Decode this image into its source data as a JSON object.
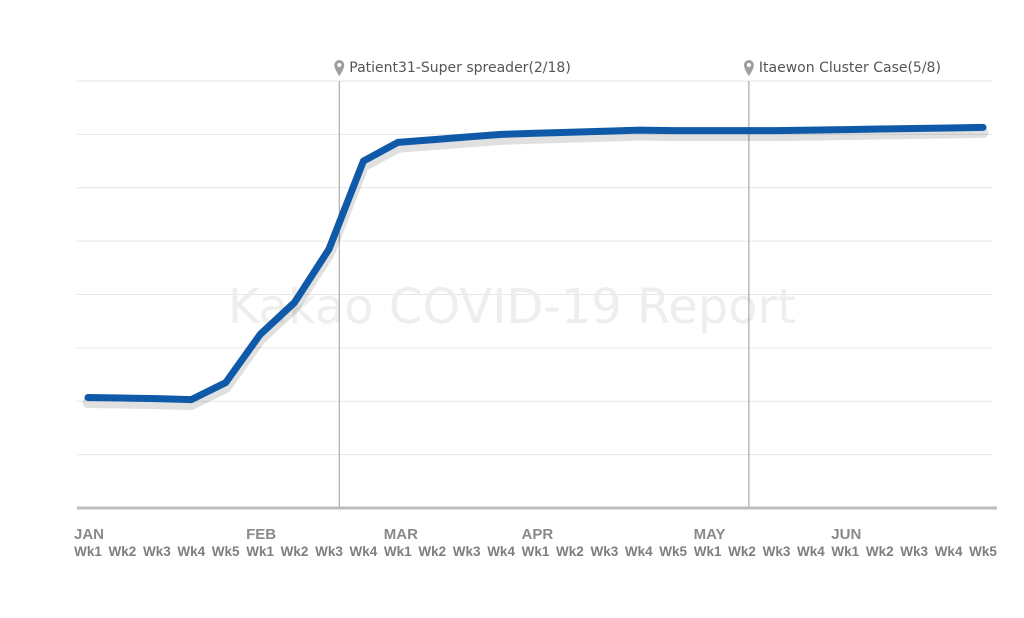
{
  "watermark": "Kakao COVID-19 Report",
  "colors": {
    "line": "#0f5aa8",
    "grid": "#e6e6e6",
    "axis": "#bdbdbd",
    "event": "#9a9a9a"
  },
  "chart_data": {
    "type": "line",
    "title": "",
    "xlabel": "",
    "ylabel": "",
    "grid": true,
    "y_tick_labels_shown": false,
    "ylim": [
      0,
      8
    ],
    "months": [
      {
        "label": "JAN",
        "weeks": [
          "Wk1",
          "Wk2",
          "Wk3",
          "Wk4",
          "Wk5"
        ]
      },
      {
        "label": "FEB",
        "weeks": [
          "Wk1",
          "Wk2",
          "Wk3",
          "Wk4"
        ]
      },
      {
        "label": "MAR",
        "weeks": [
          "Wk1",
          "Wk2",
          "Wk3",
          "Wk4"
        ]
      },
      {
        "label": "APR",
        "weeks": [
          "Wk1",
          "Wk2",
          "Wk3",
          "Wk4",
          "Wk5"
        ]
      },
      {
        "label": "MAY",
        "weeks": [
          "Wk1",
          "Wk2",
          "Wk3",
          "Wk4"
        ]
      },
      {
        "label": "JUN",
        "weeks": [
          "Wk1",
          "Wk2",
          "Wk3",
          "Wk4",
          "Wk5"
        ]
      }
    ],
    "categories": [
      "JAN Wk1",
      "JAN Wk2",
      "JAN Wk3",
      "JAN Wk4",
      "JAN Wk5",
      "FEB Wk1",
      "FEB Wk2",
      "FEB Wk3",
      "FEB Wk4",
      "MAR Wk1",
      "MAR Wk2",
      "MAR Wk3",
      "MAR Wk4",
      "APR Wk1",
      "APR Wk2",
      "APR Wk3",
      "APR Wk4",
      "APR Wk5",
      "MAY Wk1",
      "MAY Wk2",
      "MAY Wk3",
      "MAY Wk4",
      "JUN Wk1",
      "JUN Wk2",
      "JUN Wk3",
      "JUN Wk4",
      "JUN Wk5"
    ],
    "series": [
      {
        "values": [
          2.07,
          2.06,
          2.05,
          2.03,
          2.35,
          3.25,
          3.85,
          4.85,
          6.5,
          6.85,
          6.9,
          6.95,
          7.0,
          7.02,
          7.04,
          7.06,
          7.08,
          7.07,
          7.07,
          7.07,
          7.07,
          7.08,
          7.09,
          7.1,
          7.11,
          7.12,
          7.13
        ]
      }
    ],
    "events": [
      {
        "label": "Patient31-Super spreader(2/18)",
        "x_index": 7.3
      },
      {
        "label": "Itaewon Cluster Case(5/8)",
        "x_index": 19.2
      }
    ]
  }
}
